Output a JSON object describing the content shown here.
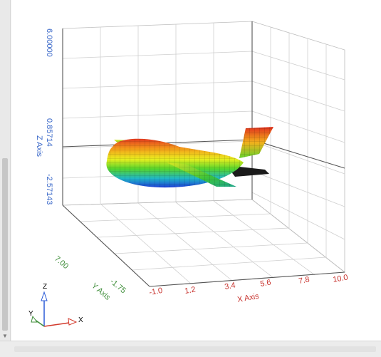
{
  "plot": {
    "z_axis_label": "Z Axis",
    "y_axis_label": "Y Axis",
    "x_axis_label": "X Axis",
    "z_ticks": [
      "6.00000",
      "0.85714",
      "-2.57143"
    ],
    "y_ticks": [
      "7.00",
      "-1.75"
    ],
    "x_ticks": [
      "-1.0",
      "1.2",
      "3.4",
      "5.6",
      "7.8",
      "10.0"
    ]
  },
  "triad": {
    "z": "Z",
    "y": "Y",
    "x": "X"
  },
  "colors": {
    "z_axis": "#3a68c9",
    "y_axis": "#3f8e3a",
    "x_axis": "#c8332e"
  }
}
